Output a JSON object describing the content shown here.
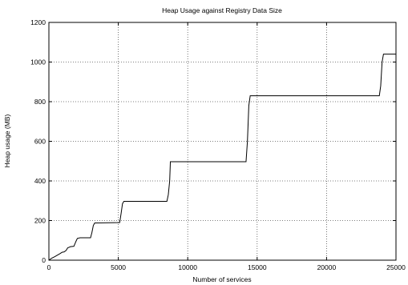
{
  "chart_data": {
    "type": "line",
    "title": "Heap Usage against Registry Data Size",
    "xlabel": "Number of services",
    "ylabel": "Heap usage (MB)",
    "xlim": [
      0,
      25000
    ],
    "ylim": [
      0,
      1200
    ],
    "xticks": [
      0,
      5000,
      10000,
      15000,
      20000,
      25000
    ],
    "yticks": [
      0,
      200,
      400,
      600,
      800,
      1000,
      1200
    ],
    "grid": true,
    "legend": "none",
    "series": [
      {
        "color": "#000000",
        "x": [
          0,
          200,
          400,
          600,
          800,
          950,
          1100,
          1250,
          1350,
          1450,
          1550,
          1800,
          1950,
          2050,
          2250,
          3000,
          3100,
          3200,
          3300,
          5100,
          5200,
          5300,
          5400,
          8500,
          8600,
          8700,
          8750,
          14200,
          14300,
          14400,
          14500,
          23800,
          23900,
          24000,
          24100,
          25000
        ],
        "y": [
          0,
          10,
          17,
          25,
          33,
          40,
          42,
          50,
          62,
          65,
          68,
          70,
          95,
          110,
          113,
          113,
          140,
          175,
          188,
          190,
          235,
          285,
          297,
          297,
          330,
          400,
          497,
          497,
          600,
          780,
          830,
          830,
          880,
          1000,
          1040,
          1040
        ]
      }
    ]
  }
}
